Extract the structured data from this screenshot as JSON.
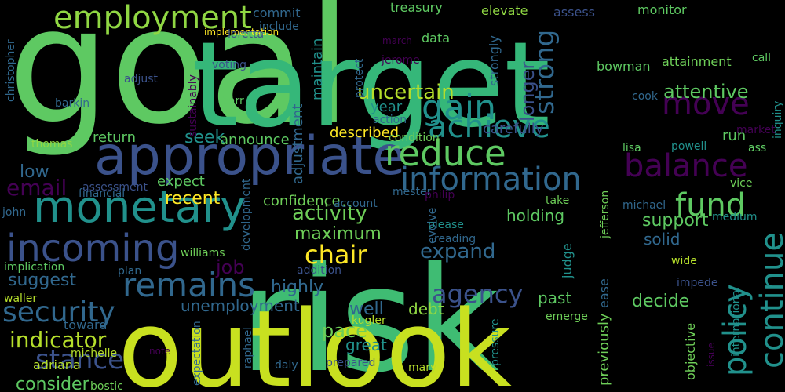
{
  "words": [
    {
      "text": "goal",
      "color": "#5ec962"
    },
    {
      "text": "target",
      "color": "#35b779"
    },
    {
      "text": "risk",
      "color": "#3fbc73"
    },
    {
      "text": "outlook",
      "color": "#c8e020"
    },
    {
      "text": "employment",
      "color": "#90d743"
    },
    {
      "text": "appropriate",
      "color": "#3b528b"
    },
    {
      "text": "reduce",
      "color": "#5ec962"
    },
    {
      "text": "achieve",
      "color": "#21918c"
    },
    {
      "text": "move",
      "color": "#440154"
    },
    {
      "text": "gain",
      "color": "#21918c"
    },
    {
      "text": "balance",
      "color": "#440154"
    },
    {
      "text": "monetary",
      "color": "#21918c"
    },
    {
      "text": "incoming",
      "color": "#3b528b"
    },
    {
      "text": "remains",
      "color": "#31688e"
    },
    {
      "text": "information",
      "color": "#31688e"
    },
    {
      "text": "fund",
      "color": "#5ec962"
    },
    {
      "text": "policy",
      "color": "#21918c"
    },
    {
      "text": "continue",
      "color": "#21918c"
    },
    {
      "text": "security",
      "color": "#31688e"
    },
    {
      "text": "agency",
      "color": "#3b528b"
    },
    {
      "text": "stance",
      "color": "#3b528b"
    },
    {
      "text": "indicator",
      "color": "#b5de2b"
    },
    {
      "text": "chair",
      "color": "#fde725"
    },
    {
      "text": "expand",
      "color": "#31688e"
    },
    {
      "text": "email",
      "color": "#440154"
    },
    {
      "text": "uncertain",
      "color": "#b5de2b"
    },
    {
      "text": "strong",
      "color": "#31688e"
    },
    {
      "text": "longer",
      "color": "#3b528b"
    },
    {
      "text": "attentive",
      "color": "#5ec962"
    },
    {
      "text": "activity",
      "color": "#6ece58"
    },
    {
      "text": "maximum",
      "color": "#6ece58"
    },
    {
      "text": "recent",
      "color": "#fde725"
    },
    {
      "text": "seek",
      "color": "#21918c"
    },
    {
      "text": "low",
      "color": "#31688e"
    },
    {
      "text": "job",
      "color": "#440154"
    },
    {
      "text": "suggest",
      "color": "#31688e"
    },
    {
      "text": "highly",
      "color": "#31688e"
    },
    {
      "text": "support",
      "color": "#5ec962"
    },
    {
      "text": "solid",
      "color": "#31688e"
    },
    {
      "text": "holding",
      "color": "#5ec962"
    },
    {
      "text": "past",
      "color": "#5ec962"
    },
    {
      "text": "decide",
      "color": "#5ec962"
    },
    {
      "text": "unemployment",
      "color": "#31688e"
    },
    {
      "text": "pace",
      "color": "#6ece58"
    },
    {
      "text": "well",
      "color": "#31688e"
    },
    {
      "text": "debt",
      "color": "#90d743"
    },
    {
      "text": "great",
      "color": "#21918c"
    },
    {
      "text": "consider",
      "color": "#5ec962"
    },
    {
      "text": "return",
      "color": "#5ec962"
    },
    {
      "text": "announce",
      "color": "#5ec962"
    },
    {
      "text": "described",
      "color": "#fde725"
    },
    {
      "text": "year",
      "color": "#21918c"
    },
    {
      "text": "confidence",
      "color": "#6ece58"
    },
    {
      "text": "expect",
      "color": "#5ec962"
    },
    {
      "text": "carefully",
      "color": "#3b528b"
    },
    {
      "text": "run",
      "color": "#5ec962"
    },
    {
      "text": "adjustment",
      "color": "#31688e"
    },
    {
      "text": "maintain",
      "color": "#21918c"
    },
    {
      "text": "commit",
      "color": "#31688e"
    },
    {
      "text": "treasury",
      "color": "#5ec962"
    },
    {
      "text": "elevate",
      "color": "#90d743"
    },
    {
      "text": "assess",
      "color": "#3b528b"
    },
    {
      "text": "monitor",
      "color": "#5ec962"
    },
    {
      "text": "data",
      "color": "#5ec962"
    },
    {
      "text": "strongly",
      "color": "#31688e"
    },
    {
      "text": "bowman",
      "color": "#5ec962"
    },
    {
      "text": "attainment",
      "color": "#6ece58"
    },
    {
      "text": "call",
      "color": "#5ec962"
    },
    {
      "text": "cook",
      "color": "#31688e"
    },
    {
      "text": "market",
      "color": "#440154"
    },
    {
      "text": "lisa",
      "color": "#5ec962"
    },
    {
      "text": "powell",
      "color": "#21918c"
    },
    {
      "text": "vice",
      "color": "#6ece58"
    },
    {
      "text": "ass",
      "color": "#5ec962"
    },
    {
      "text": "inquiry",
      "color": "#21918c"
    },
    {
      "text": "michael",
      "color": "#31688e"
    },
    {
      "text": "medium",
      "color": "#21918c"
    },
    {
      "text": "take",
      "color": "#6ece58"
    },
    {
      "text": "jefferson",
      "color": "#6ece58"
    },
    {
      "text": "mester",
      "color": "#31688e"
    },
    {
      "text": "evolve",
      "color": "#31688e"
    },
    {
      "text": "please",
      "color": "#21918c"
    },
    {
      "text": "philip",
      "color": "#440154"
    },
    {
      "text": "reading",
      "color": "#31688e"
    },
    {
      "text": "judge",
      "color": "#21918c"
    },
    {
      "text": "wide",
      "color": "#b5de2b"
    },
    {
      "text": "impede",
      "color": "#3b528b"
    },
    {
      "text": "ease",
      "color": "#31688e"
    },
    {
      "text": "emerge",
      "color": "#6ece58"
    },
    {
      "text": "previously",
      "color": "#6ece58"
    },
    {
      "text": "objective",
      "color": "#6ece58"
    },
    {
      "text": "international",
      "color": "#21918c"
    },
    {
      "text": "issue",
      "color": "#440154"
    },
    {
      "text": "pressure",
      "color": "#21918c"
    },
    {
      "text": "kugler",
      "color": "#b5de2b"
    },
    {
      "text": "mary",
      "color": "#b5de2b"
    },
    {
      "text": "prepared",
      "color": "#3b528b"
    },
    {
      "text": "daly",
      "color": "#31688e"
    },
    {
      "text": "raphael",
      "color": "#31688e"
    },
    {
      "text": "expectation",
      "color": "#31688e"
    },
    {
      "text": "note",
      "color": "#440154"
    },
    {
      "text": "bostic",
      "color": "#6ece58"
    },
    {
      "text": "michelle",
      "color": "#b5de2b"
    },
    {
      "text": "adriana",
      "color": "#b5de2b"
    },
    {
      "text": "waller",
      "color": "#b5de2b"
    },
    {
      "text": "implication",
      "color": "#5ec962"
    },
    {
      "text": "plan",
      "color": "#31688e"
    },
    {
      "text": "addition",
      "color": "#3b528b"
    },
    {
      "text": "williams",
      "color": "#6ece58"
    },
    {
      "text": "toward",
      "color": "#31688e"
    },
    {
      "text": "john",
      "color": "#31688e"
    },
    {
      "text": "financial",
      "color": "#31688e"
    },
    {
      "text": "assessment",
      "color": "#3b528b"
    },
    {
      "text": "development",
      "color": "#31688e"
    },
    {
      "text": "account",
      "color": "#31688e"
    },
    {
      "text": "condition",
      "color": "#6ece58"
    },
    {
      "text": "action",
      "color": "#31688e"
    },
    {
      "text": "jerome",
      "color": "#440154"
    },
    {
      "text": "march",
      "color": "#440154"
    },
    {
      "text": "protect",
      "color": "#31688e"
    },
    {
      "text": "implementation",
      "color": "#fde725"
    },
    {
      "text": "include",
      "color": "#31688e"
    },
    {
      "text": "loretta",
      "color": "#3b528b"
    },
    {
      "text": "voting",
      "color": "#3b528b"
    },
    {
      "text": "sustainably",
      "color": "#440154"
    },
    {
      "text": "adjust",
      "color": "#3b528b"
    },
    {
      "text": "barr",
      "color": "#5ec962"
    },
    {
      "text": "barkin",
      "color": "#31688e"
    },
    {
      "text": "thomas",
      "color": "#90d743"
    },
    {
      "text": "christopher",
      "color": "#31688e"
    }
  ]
}
